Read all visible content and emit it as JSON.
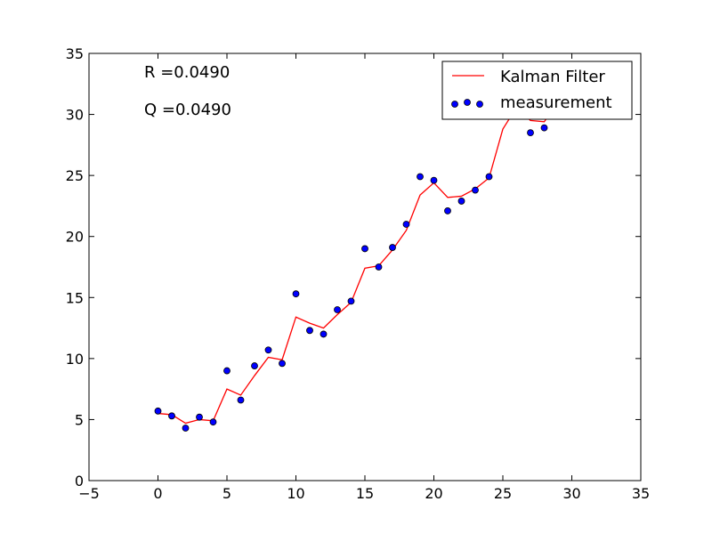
{
  "chart_data": {
    "type": "line",
    "title": "",
    "xlabel": "",
    "ylabel": "",
    "xlim": [
      -5,
      35
    ],
    "ylim": [
      0,
      35
    ],
    "xticks": [
      -5,
      0,
      5,
      10,
      15,
      20,
      25,
      30,
      35
    ],
    "yticks": [
      0,
      5,
      10,
      15,
      20,
      25,
      30,
      35
    ],
    "xtick_labels": [
      "−5",
      "0",
      "5",
      "10",
      "15",
      "20",
      "25",
      "30",
      "35"
    ],
    "ytick_labels": [
      "0",
      "5",
      "10",
      "15",
      "20",
      "25",
      "30",
      "35"
    ],
    "grid": false,
    "legend_position": "top-right",
    "annotations": [
      "R =0.0490",
      "Q =0.0490"
    ],
    "series": [
      {
        "name": "Kalman Filter",
        "kind": "line",
        "color": "#ff0000",
        "x": [
          0,
          1,
          2,
          3,
          4,
          5,
          6,
          7,
          8,
          9,
          10,
          11,
          12,
          13,
          14,
          15,
          16,
          17,
          18,
          19,
          20,
          21,
          22,
          23,
          24,
          25,
          26,
          27,
          28,
          29
        ],
        "y": [
          5.5,
          5.4,
          4.7,
          5.0,
          4.9,
          7.5,
          7.0,
          8.6,
          10.1,
          9.9,
          13.4,
          12.9,
          12.5,
          13.6,
          14.6,
          17.4,
          17.6,
          18.9,
          20.5,
          23.4,
          24.4,
          23.2,
          23.3,
          23.9,
          24.8,
          28.8,
          30.6,
          29.5,
          29.4,
          31.0
        ]
      },
      {
        "name": "measurement",
        "kind": "scatter",
        "color": "#0000ff",
        "x": [
          0,
          1,
          2,
          3,
          4,
          5,
          6,
          7,
          8,
          9,
          10,
          11,
          12,
          13,
          14,
          15,
          16,
          17,
          18,
          19,
          20,
          21,
          22,
          23,
          24,
          27,
          28
        ],
        "y": [
          5.7,
          5.3,
          4.3,
          5.2,
          4.8,
          9.0,
          6.6,
          9.4,
          10.7,
          9.6,
          15.3,
          12.3,
          12.0,
          14.0,
          14.7,
          19.0,
          17.5,
          19.1,
          21.0,
          24.9,
          24.6,
          22.1,
          22.9,
          23.8,
          24.9,
          28.5,
          28.9
        ]
      }
    ]
  }
}
